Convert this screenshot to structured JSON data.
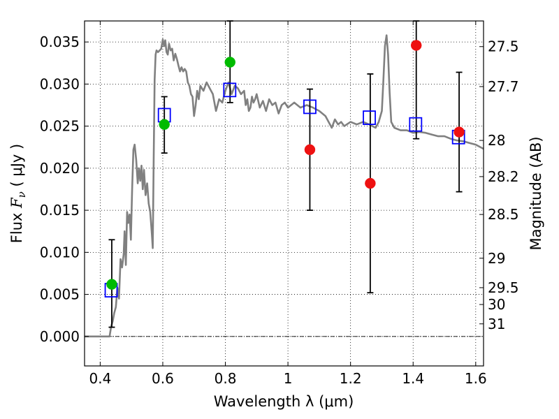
{
  "chart_data": {
    "type": "scatter",
    "title": "",
    "xlabel": "Wavelength  λ (μm)",
    "ylabel_parts": {
      "prefix": "Flux  ",
      "symbol": "F",
      "subscript": "ν",
      "unit": "  ( μJy )"
    },
    "y2label": "Magnitude (AB)",
    "xlim": [
      0.35,
      1.625
    ],
    "ylim": [
      -0.0035,
      0.0375
    ],
    "xticks": [
      0.4,
      0.6,
      0.8,
      1.0,
      1.2,
      1.4,
      1.6
    ],
    "xtick_labels": [
      "0.4",
      "0.6",
      "0.8",
      "1",
      "1.2",
      "1.4",
      "1.6"
    ],
    "yticks": [
      0.0,
      0.005,
      0.01,
      0.015,
      0.02,
      0.025,
      0.03,
      0.035
    ],
    "ytick_labels": [
      "0.000",
      "0.005",
      "0.010",
      "0.015",
      "0.020",
      "0.025",
      "0.030",
      "0.035"
    ],
    "y2ticks": [
      {
        "flux": 0.03445,
        "label": "27.5"
      },
      {
        "flux": 0.0297,
        "label": "27.7"
      },
      {
        "flux": 0.0233,
        "label": "28"
      },
      {
        "flux": 0.019,
        "label": "28.2"
      },
      {
        "flux": 0.0145,
        "label": "28.5"
      },
      {
        "flux": 0.0093,
        "label": "29"
      },
      {
        "flux": 0.0058,
        "label": "29.5"
      },
      {
        "flux": 0.0038,
        "label": "30"
      },
      {
        "flux": 0.0015,
        "label": "31"
      }
    ],
    "grid": true,
    "zero_line": true,
    "colors": {
      "model": "#808080",
      "model_photometry": "#0000ff",
      "green_points": "#00bb00",
      "red_points": "#ee1111",
      "errorbar": "#000000"
    },
    "series": [
      {
        "kind": "line",
        "points": [
          [
            0.35,
            0.0
          ],
          [
            0.43,
            0.0
          ],
          [
            0.435,
            0.0012
          ],
          [
            0.44,
            0.0018
          ],
          [
            0.445,
            0.0028
          ],
          [
            0.45,
            0.0035
          ],
          [
            0.455,
            0.0058
          ],
          [
            0.46,
            0.0045
          ],
          [
            0.465,
            0.0092
          ],
          [
            0.47,
            0.0082
          ],
          [
            0.475,
            0.0098
          ],
          [
            0.478,
            0.0125
          ],
          [
            0.482,
            0.0085
          ],
          [
            0.486,
            0.0148
          ],
          [
            0.49,
            0.0135
          ],
          [
            0.494,
            0.0145
          ],
          [
            0.498,
            0.0115
          ],
          [
            0.502,
            0.0175
          ],
          [
            0.506,
            0.0222
          ],
          [
            0.51,
            0.0228
          ],
          [
            0.515,
            0.021
          ],
          [
            0.52,
            0.0182
          ],
          [
            0.524,
            0.02
          ],
          [
            0.528,
            0.0185
          ],
          [
            0.532,
            0.0203
          ],
          [
            0.536,
            0.0175
          ],
          [
            0.54,
            0.0198
          ],
          [
            0.545,
            0.0168
          ],
          [
            0.55,
            0.0182
          ],
          [
            0.555,
            0.0158
          ],
          [
            0.56,
            0.0148
          ],
          [
            0.565,
            0.0122
          ],
          [
            0.568,
            0.0105
          ],
          [
            0.571,
            0.0215
          ],
          [
            0.574,
            0.0305
          ],
          [
            0.577,
            0.0335
          ],
          [
            0.58,
            0.034
          ],
          [
            0.585,
            0.0338
          ],
          [
            0.59,
            0.034
          ],
          [
            0.595,
            0.0342
          ],
          [
            0.6,
            0.0353
          ],
          [
            0.604,
            0.0345
          ],
          [
            0.608,
            0.0352
          ],
          [
            0.612,
            0.0338
          ],
          [
            0.616,
            0.0335
          ],
          [
            0.62,
            0.0348
          ],
          [
            0.625,
            0.034
          ],
          [
            0.63,
            0.0342
          ],
          [
            0.635,
            0.0328
          ],
          [
            0.64,
            0.0336
          ],
          [
            0.645,
            0.033
          ],
          [
            0.65,
            0.0322
          ],
          [
            0.655,
            0.0315
          ],
          [
            0.66,
            0.032
          ],
          [
            0.665,
            0.0315
          ],
          [
            0.67,
            0.0318
          ],
          [
            0.675,
            0.0315
          ],
          [
            0.68,
            0.0302
          ],
          [
            0.685,
            0.0298
          ],
          [
            0.69,
            0.0288
          ],
          [
            0.695,
            0.0285
          ],
          [
            0.7,
            0.0262
          ],
          [
            0.705,
            0.0275
          ],
          [
            0.71,
            0.0292
          ],
          [
            0.715,
            0.0282
          ],
          [
            0.72,
            0.0298
          ],
          [
            0.73,
            0.0292
          ],
          [
            0.74,
            0.0302
          ],
          [
            0.75,
            0.0295
          ],
          [
            0.76,
            0.0288
          ],
          [
            0.77,
            0.0268
          ],
          [
            0.78,
            0.0282
          ],
          [
            0.79,
            0.0278
          ],
          [
            0.8,
            0.0292
          ],
          [
            0.81,
            0.0302
          ],
          [
            0.82,
            0.0288
          ],
          [
            0.83,
            0.0298
          ],
          [
            0.84,
            0.0295
          ],
          [
            0.85,
            0.0288
          ],
          [
            0.86,
            0.0292
          ],
          [
            0.865,
            0.0275
          ],
          [
            0.87,
            0.0282
          ],
          [
            0.875,
            0.0268
          ],
          [
            0.88,
            0.0272
          ],
          [
            0.885,
            0.0285
          ],
          [
            0.89,
            0.0278
          ],
          [
            0.895,
            0.0282
          ],
          [
            0.9,
            0.0288
          ],
          [
            0.91,
            0.0272
          ],
          [
            0.92,
            0.028
          ],
          [
            0.93,
            0.0268
          ],
          [
            0.94,
            0.0282
          ],
          [
            0.95,
            0.0275
          ],
          [
            0.96,
            0.0278
          ],
          [
            0.97,
            0.0265
          ],
          [
            0.98,
            0.0275
          ],
          [
            0.99,
            0.0278
          ],
          [
            1.0,
            0.0272
          ],
          [
            1.02,
            0.0278
          ],
          [
            1.04,
            0.0272
          ],
          [
            1.06,
            0.0275
          ],
          [
            1.08,
            0.0272
          ],
          [
            1.1,
            0.0268
          ],
          [
            1.12,
            0.0262
          ],
          [
            1.13,
            0.0255
          ],
          [
            1.14,
            0.0248
          ],
          [
            1.15,
            0.0258
          ],
          [
            1.16,
            0.0252
          ],
          [
            1.17,
            0.0255
          ],
          [
            1.18,
            0.025
          ],
          [
            1.2,
            0.0255
          ],
          [
            1.22,
            0.0252
          ],
          [
            1.24,
            0.0255
          ],
          [
            1.26,
            0.0252
          ],
          [
            1.28,
            0.0248
          ],
          [
            1.29,
            0.0255
          ],
          [
            1.3,
            0.0268
          ],
          [
            1.305,
            0.0305
          ],
          [
            1.31,
            0.0345
          ],
          [
            1.315,
            0.0358
          ],
          [
            1.32,
            0.0335
          ],
          [
            1.325,
            0.029
          ],
          [
            1.33,
            0.0255
          ],
          [
            1.34,
            0.0248
          ],
          [
            1.36,
            0.0245
          ],
          [
            1.38,
            0.0245
          ],
          [
            1.4,
            0.0242
          ],
          [
            1.42,
            0.0243
          ],
          [
            1.44,
            0.0242
          ],
          [
            1.46,
            0.024
          ],
          [
            1.48,
            0.0238
          ],
          [
            1.5,
            0.0238
          ],
          [
            1.52,
            0.0235
          ],
          [
            1.54,
            0.0233
          ],
          [
            1.56,
            0.0232
          ],
          [
            1.58,
            0.023
          ],
          [
            1.6,
            0.0228
          ],
          [
            1.625,
            0.0223
          ]
        ]
      },
      {
        "kind": "model_photometry",
        "marker": "open-square",
        "points": [
          [
            0.435,
            0.0055
          ],
          [
            0.605,
            0.0263
          ],
          [
            0.814,
            0.0293
          ],
          [
            1.07,
            0.0273
          ],
          [
            1.26,
            0.026
          ],
          [
            1.408,
            0.0252
          ],
          [
            1.545,
            0.0237
          ]
        ]
      },
      {
        "kind": "observed",
        "marker": "filled-circle",
        "points": [
          {
            "x": 0.437,
            "y": 0.0062,
            "color": "green",
            "err": [
              0.0011,
              0.0115
            ]
          },
          {
            "x": 0.605,
            "y": 0.0252,
            "color": "green",
            "err": [
              0.0218,
              0.0285
            ]
          },
          {
            "x": 0.815,
            "y": 0.0326,
            "color": "green",
            "err": [
              0.0278,
              0.0375
            ]
          },
          {
            "x": 1.07,
            "y": 0.0222,
            "color": "red",
            "err": [
              0.015,
              0.0294
            ]
          },
          {
            "x": 1.263,
            "y": 0.0182,
            "color": "red",
            "err": [
              0.0052,
              0.0312
            ]
          },
          {
            "x": 1.41,
            "y": 0.0346,
            "color": "red",
            "err": [
              0.0235,
              0.0375
            ]
          },
          {
            "x": 1.547,
            "y": 0.0243,
            "color": "red",
            "err": [
              0.0172,
              0.0314
            ]
          }
        ]
      }
    ]
  }
}
